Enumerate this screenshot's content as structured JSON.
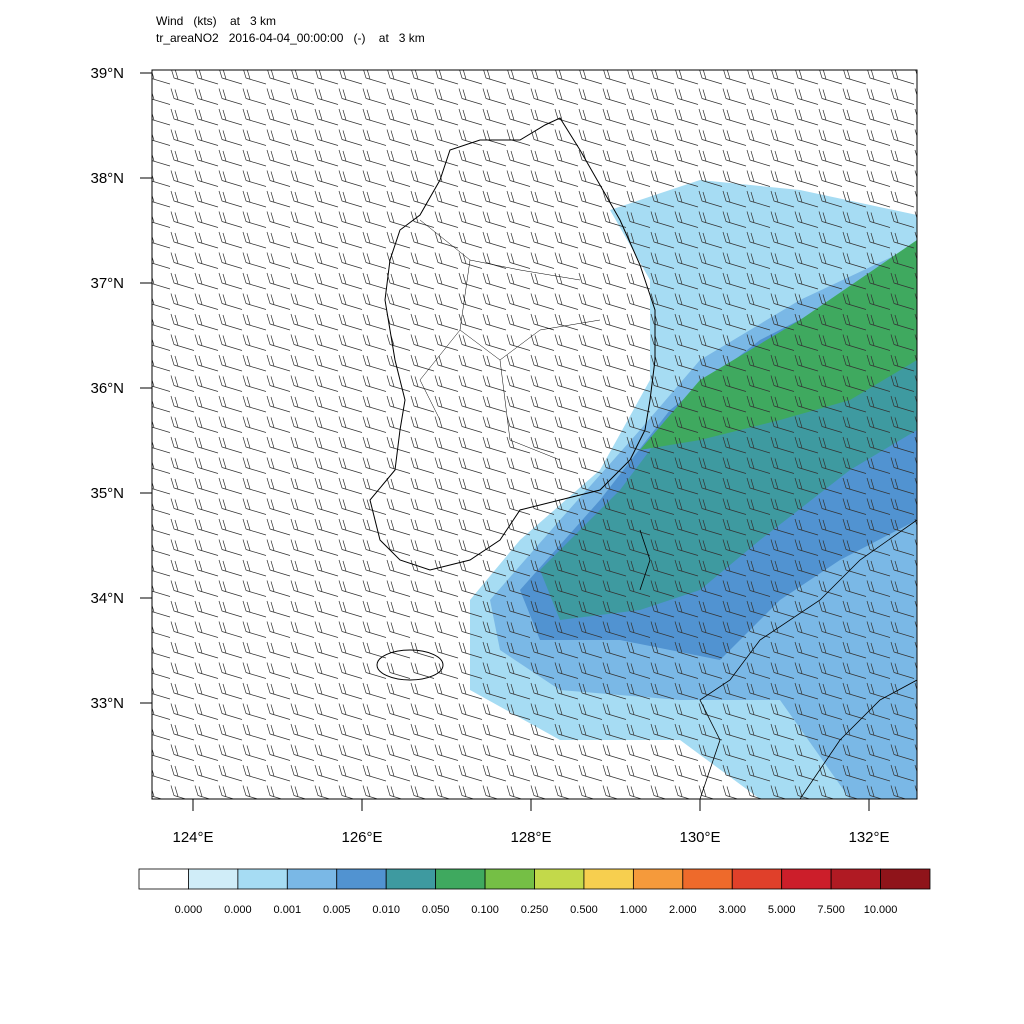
{
  "header": {
    "line1": "Wind   (kts)    at   3 km",
    "line2": "tr_areaNO2   2016-04-04_00:00:00   (-)    at   3 km"
  },
  "map": {
    "lat_ticks": [
      {
        "value": 39,
        "label": "39°N"
      },
      {
        "value": 38,
        "label": "38°N"
      },
      {
        "value": 37,
        "label": "37°N"
      },
      {
        "value": 36,
        "label": "36°N"
      },
      {
        "value": 35,
        "label": "35°N"
      },
      {
        "value": 34,
        "label": "34°N"
      },
      {
        "value": 33,
        "label": "33°N"
      }
    ],
    "lon_ticks": [
      {
        "value": 124,
        "label": "124°E"
      },
      {
        "value": 126,
        "label": "126°E"
      },
      {
        "value": 128,
        "label": "128°E"
      },
      {
        "value": 130,
        "label": "130°E"
      },
      {
        "value": 132,
        "label": "132°E"
      }
    ]
  },
  "colorbar": {
    "colors": [
      "#ffffff",
      "#d0edf8",
      "#a6dcf3",
      "#7ab8e6",
      "#5193d1",
      "#3e9aa0",
      "#3fa95f",
      "#75bf45",
      "#c3d94a",
      "#f7cf4f",
      "#f59a3b",
      "#ee6a2b",
      "#e0402a",
      "#cc1e2a",
      "#b01a23",
      "#8f141a"
    ],
    "labels": [
      "0.000",
      "0.000",
      "0.001",
      "0.005",
      "0.010",
      "0.050",
      "0.100",
      "0.250",
      "0.500",
      "1.000",
      "2.000",
      "3.000",
      "5.000",
      "7.500",
      "10.000"
    ]
  }
}
